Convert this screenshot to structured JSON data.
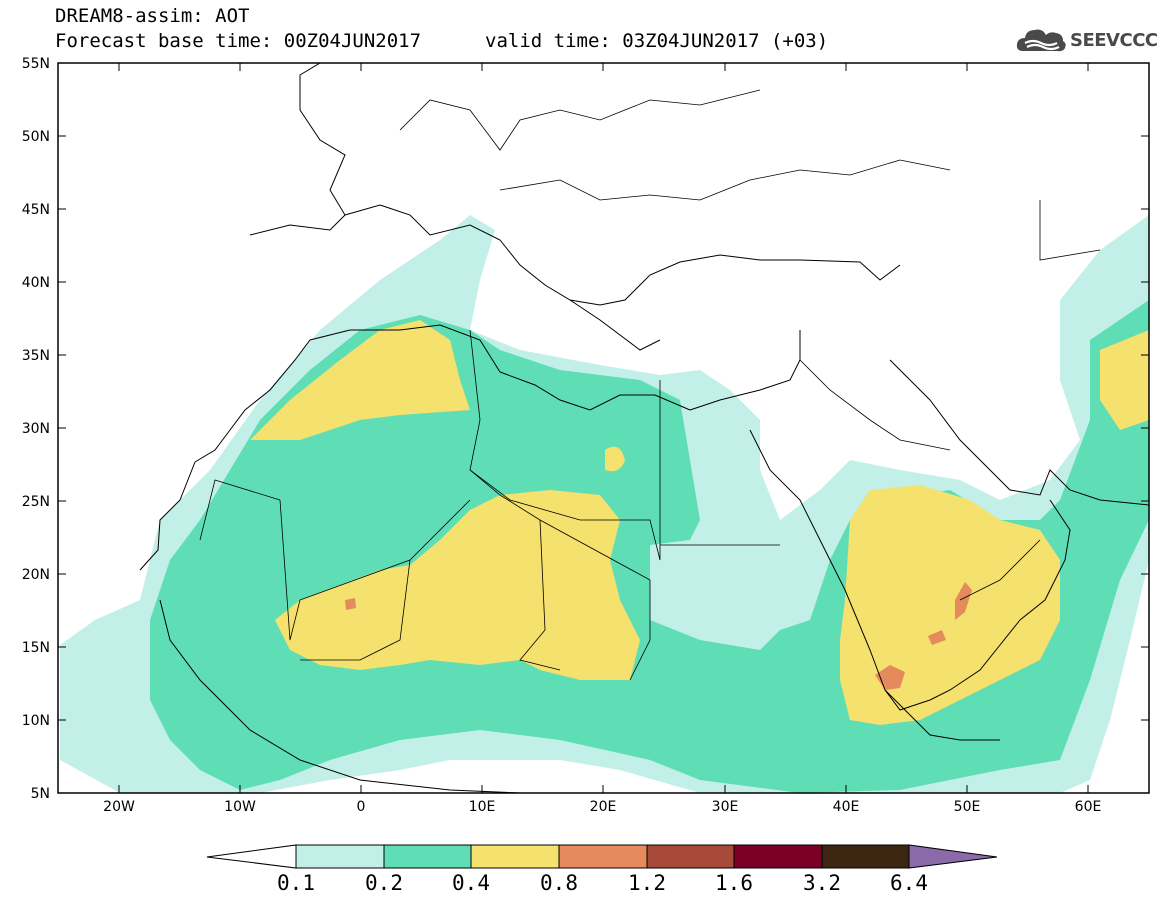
{
  "header": {
    "title": "DREAM8-assim: AOT",
    "forecast_base": "Forecast base time: 00Z04JUN2017",
    "valid_time": "valid time: 03Z04JUN2017 (+03)"
  },
  "logo": {
    "text": "SEEVCCC",
    "icon": "cloud-logo-icon"
  },
  "axes": {
    "lon_range": [
      -25,
      65
    ],
    "lat_range": [
      5,
      55
    ],
    "lat_ticks": [
      "55N",
      "50N",
      "45N",
      "40N",
      "35N",
      "30N",
      "25N",
      "20N",
      "15N",
      "10N",
      "5N"
    ],
    "lon_ticks": [
      "20W",
      "10W",
      "0",
      "10E",
      "20E",
      "30E",
      "40E",
      "50E",
      "60E"
    ]
  },
  "colorbar": {
    "levels": [
      "0.1",
      "0.2",
      "0.4",
      "0.8",
      "1.2",
      "1.6",
      "3.2",
      "6.4"
    ],
    "colors": [
      "#ffffff",
      "#c2f0e8",
      "#5fdeb6",
      "#f5e16e",
      "#e48a5d",
      "#a84a3a",
      "#7a0025",
      "#3d2612",
      "#8a6aa8"
    ]
  }
}
